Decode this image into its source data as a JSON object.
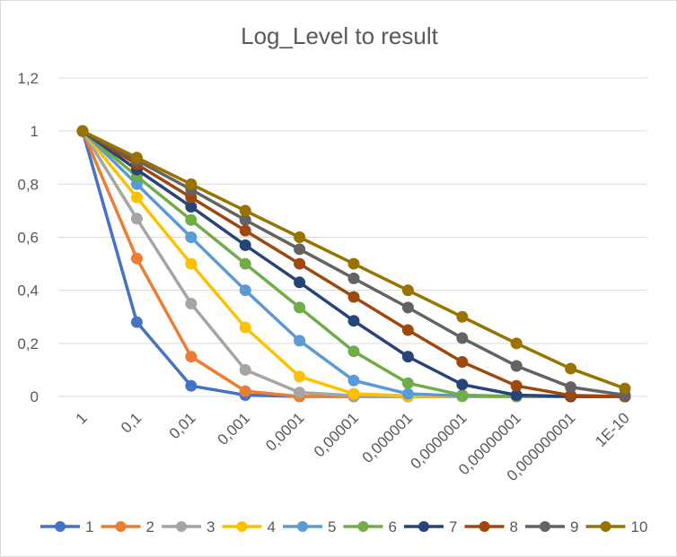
{
  "chart_data": {
    "type": "line",
    "title": "Log_Level to result",
    "xlabel": "",
    "ylabel": "",
    "categories": [
      "1",
      "0,1",
      "0,01",
      "0,001",
      "0,0001",
      "0,00001",
      "0,000001",
      "0,0000001",
      "0,00000001",
      "0,000000001",
      "1E-10"
    ],
    "ylim": [
      0,
      1.2
    ],
    "yticks": [
      0,
      0.2,
      0.4,
      0.6,
      0.8,
      1,
      1.2
    ],
    "ytick_labels": [
      "0",
      "0,2",
      "0,4",
      "0,6",
      "0,8",
      "1",
      "1,2"
    ],
    "grid": true,
    "legend_position": "bottom",
    "series": [
      {
        "name": "1",
        "color": "#4472c4",
        "values": [
          1,
          0.28,
          0.04,
          0.005,
          0,
          0,
          0,
          0,
          0,
          0,
          0
        ]
      },
      {
        "name": "2",
        "color": "#ed7d31",
        "values": [
          1,
          0.52,
          0.15,
          0.02,
          0,
          0,
          0,
          0,
          0,
          0,
          0
        ]
      },
      {
        "name": "3",
        "color": "#a5a5a5",
        "values": [
          1,
          0.67,
          0.35,
          0.1,
          0.015,
          0.003,
          0,
          0,
          0,
          0,
          0
        ]
      },
      {
        "name": "4",
        "color": "#ffc000",
        "values": [
          1,
          0.75,
          0.5,
          0.26,
          0.075,
          0.01,
          0.002,
          0,
          0,
          0,
          0
        ]
      },
      {
        "name": "5",
        "color": "#5b9bd5",
        "values": [
          1,
          0.8,
          0.6,
          0.4,
          0.21,
          0.06,
          0.01,
          0.002,
          0,
          0,
          0
        ]
      },
      {
        "name": "6",
        "color": "#70ad47",
        "values": [
          1,
          0.83,
          0.665,
          0.5,
          0.335,
          0.17,
          0.05,
          0.005,
          0,
          0,
          0
        ]
      },
      {
        "name": "7",
        "color": "#264478",
        "values": [
          1,
          0.855,
          0.715,
          0.57,
          0.43,
          0.285,
          0.15,
          0.045,
          0.005,
          0,
          0
        ]
      },
      {
        "name": "8",
        "color": "#9e480e",
        "values": [
          1,
          0.875,
          0.75,
          0.625,
          0.5,
          0.375,
          0.25,
          0.13,
          0.04,
          0.004,
          0
        ]
      },
      {
        "name": "9",
        "color": "#636363",
        "values": [
          1,
          0.89,
          0.78,
          0.665,
          0.555,
          0.445,
          0.335,
          0.22,
          0.115,
          0.035,
          0.005
        ]
      },
      {
        "name": "10",
        "color": "#997300",
        "values": [
          1,
          0.9,
          0.8,
          0.7,
          0.6,
          0.5,
          0.4,
          0.3,
          0.2,
          0.105,
          0.03
        ]
      }
    ]
  }
}
